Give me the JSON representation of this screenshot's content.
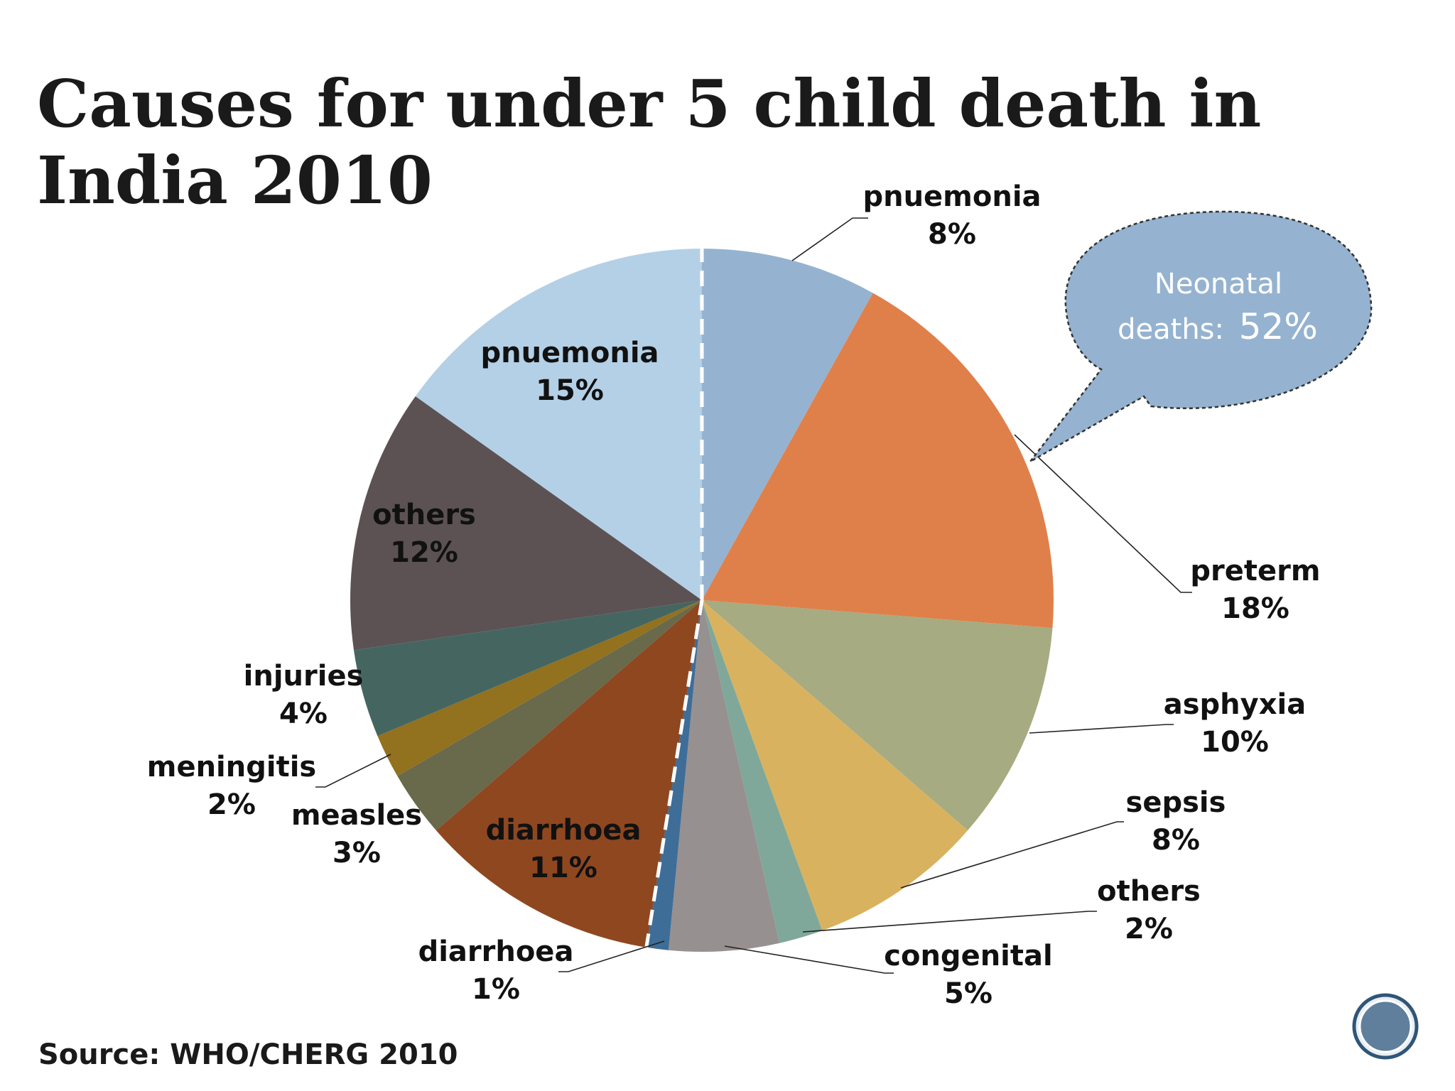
{
  "title": "Causes for under 5 child death in India 2010",
  "source": "Source: WHO/CHERG 2010",
  "callout": {
    "line1": "Neonatal",
    "line2_prefix": "deaths:",
    "value": "52%"
  },
  "colors": {
    "neonatal_pnuemonia": "#95b3d0",
    "preterm": "#df804a",
    "asphyxia": "#a6ab82",
    "sepsis": "#d9b25f",
    "neonatal_others": "#7fa89a",
    "congenital": "#979090",
    "neonatal_diarrhoea": "#3e6d98",
    "diarrhoea": "#8f4720",
    "measles": "#69694b",
    "meningitis": "#92711f",
    "injuries": "#456660",
    "others": "#5c5254",
    "pnuemonia": "#b4d0e6",
    "callout_fill": "#95b3d0"
  },
  "chart_data": {
    "type": "pie",
    "title": "Causes for under 5 child death in India 2010",
    "start": "12 o'clock, clockwise",
    "slices": [
      {
        "name": "pnuemonia",
        "value": 8,
        "label": "8%",
        "group": "neonatal",
        "label_pos": "outside"
      },
      {
        "name": "preterm",
        "value": 18,
        "label": "18%",
        "group": "neonatal",
        "label_pos": "outside"
      },
      {
        "name": "asphyxia",
        "value": 10,
        "label": "10%",
        "group": "neonatal",
        "label_pos": "outside"
      },
      {
        "name": "sepsis",
        "value": 8,
        "label": "8%",
        "group": "neonatal",
        "label_pos": "outside"
      },
      {
        "name": "others",
        "value": 2,
        "label": "2%",
        "group": "neonatal",
        "label_pos": "outside"
      },
      {
        "name": "congenital",
        "value": 5,
        "label": "5%",
        "group": "neonatal",
        "label_pos": "outside"
      },
      {
        "name": "diarrhoea",
        "value": 1,
        "label": "1%",
        "group": "neonatal",
        "label_pos": "outside"
      },
      {
        "name": "diarrhoea",
        "value": 11,
        "label": "11%",
        "group": "child",
        "label_pos": "inside"
      },
      {
        "name": "measles",
        "value": 3,
        "label": "3%",
        "group": "child",
        "label_pos": "outside"
      },
      {
        "name": "meningitis",
        "value": 2,
        "label": "2%",
        "group": "child",
        "label_pos": "outside"
      },
      {
        "name": "injuries",
        "value": 4,
        "label": "4%",
        "group": "child",
        "label_pos": "outside"
      },
      {
        "name": "others",
        "value": 12,
        "label": "12%",
        "group": "child",
        "label_pos": "inside"
      },
      {
        "name": "pnuemonia",
        "value": 15,
        "label": "15%",
        "group": "child",
        "label_pos": "inside"
      }
    ],
    "highlight_group": "neonatal",
    "highlight_total": "52%"
  }
}
